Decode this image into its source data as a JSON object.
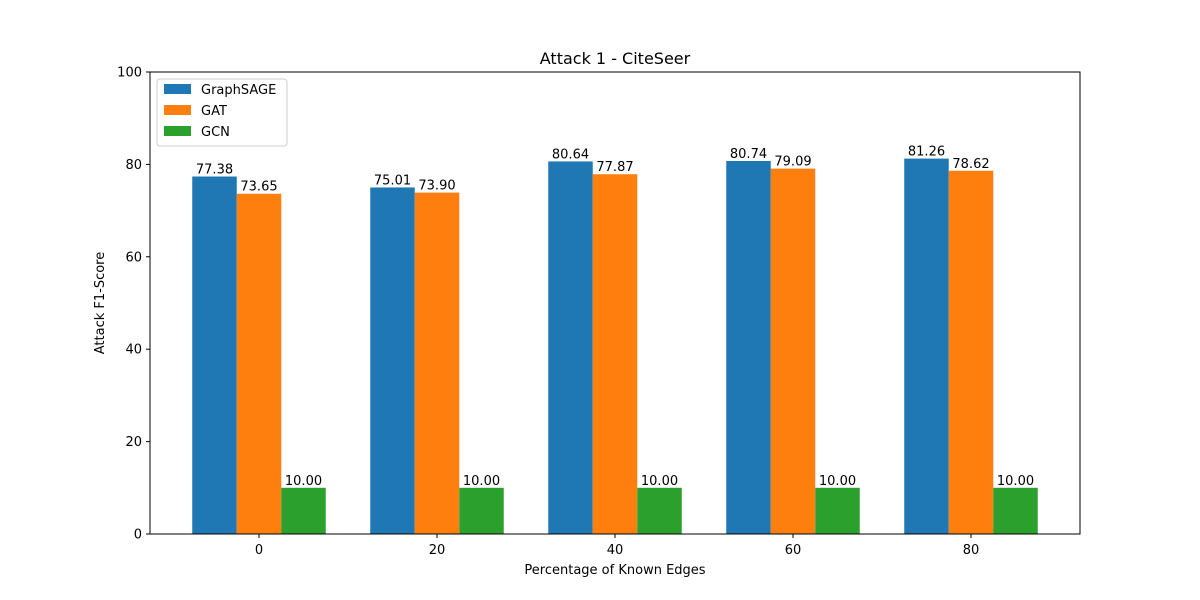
{
  "chart_data": {
    "type": "bar",
    "title": "Attack 1 - CiteSeer",
    "xlabel": "Percentage of Known Edges",
    "ylabel": "Attack F1-Score",
    "categories": [
      "0",
      "20",
      "40",
      "60",
      "80"
    ],
    "ylim": [
      0,
      100
    ],
    "yticks": [
      0,
      20,
      40,
      60,
      80,
      100
    ],
    "grid": false,
    "legend_position": "top-left",
    "series": [
      {
        "name": "GraphSAGE",
        "color": "#1f77b4",
        "values": [
          77.38,
          75.01,
          80.64,
          80.74,
          81.26
        ],
        "labels": [
          "77.38",
          "75.01",
          "80.64",
          "80.74",
          "81.26"
        ]
      },
      {
        "name": "GAT",
        "color": "#ff7f0e",
        "values": [
          73.65,
          73.9,
          77.87,
          79.09,
          78.62
        ],
        "labels": [
          "73.65",
          "73.90",
          "77.87",
          "79.09",
          "78.62"
        ]
      },
      {
        "name": "GCN",
        "color": "#2ca02c",
        "values": [
          10.0,
          10.0,
          10.0,
          10.0,
          10.0
        ],
        "labels": [
          "10.00",
          "10.00",
          "10.00",
          "10.00",
          "10.00"
        ]
      }
    ]
  }
}
